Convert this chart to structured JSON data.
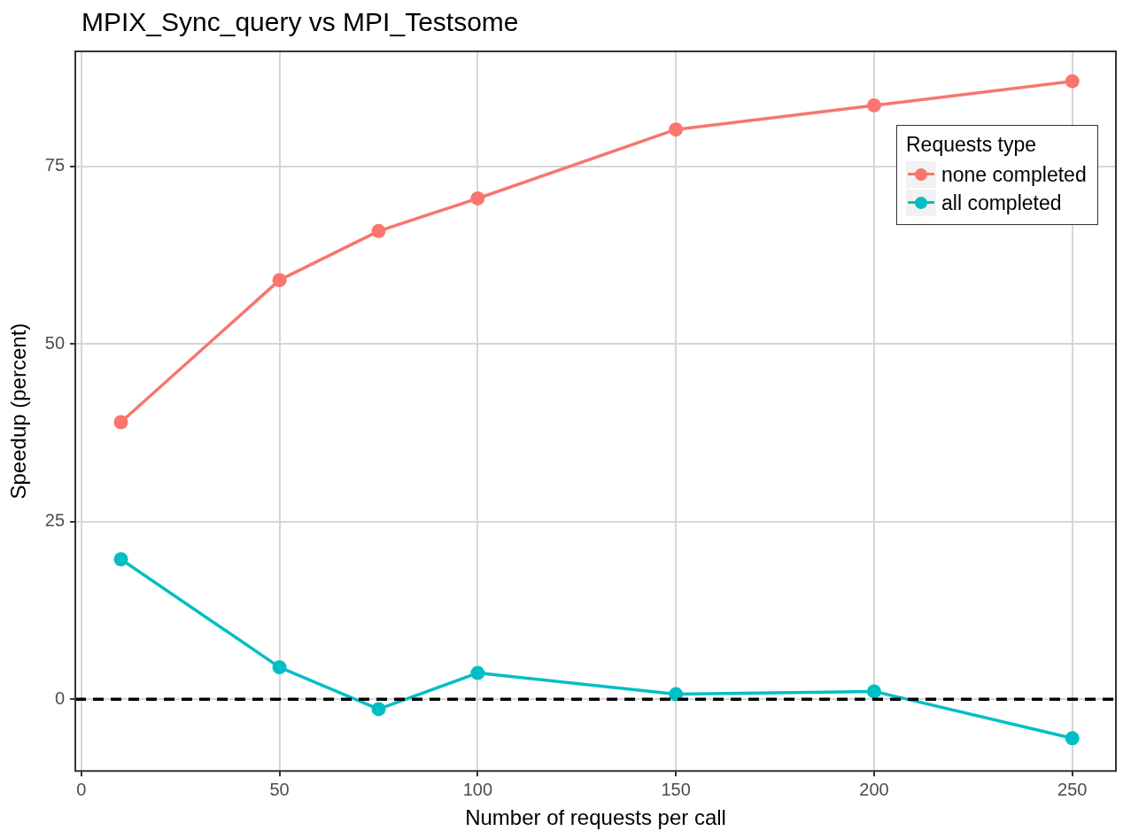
{
  "chart_data": {
    "type": "line",
    "title": "MPIX_Sync_query vs MPI_Testsome",
    "xlabel": "Number of requests per call",
    "ylabel": "Speedup (percent)",
    "legend_title": "Requests type",
    "x": [
      10,
      50,
      75,
      100,
      150,
      200,
      250
    ],
    "series": [
      {
        "name": "none completed",
        "color": "#f8766d",
        "values": [
          39.0,
          59.0,
          65.9,
          70.5,
          80.2,
          83.6,
          87.0
        ]
      },
      {
        "name": "all completed",
        "color": "#00bfc4",
        "values": [
          19.7,
          4.5,
          -1.4,
          3.7,
          0.7,
          1.1,
          -5.5
        ]
      }
    ],
    "xlim": [
      -1.5,
      261
    ],
    "xticks": [
      0,
      50,
      100,
      150,
      200,
      250
    ],
    "ylim": [
      -10.1,
      91.2
    ],
    "yticks": [
      0,
      25,
      50,
      75
    ],
    "ref_lines": [
      {
        "axis": "y",
        "value": 0,
        "color": "#000000",
        "line_style": "dashed"
      }
    ],
    "grid": true,
    "legend": "top right",
    "marker": "circle",
    "line_style": "solid"
  }
}
